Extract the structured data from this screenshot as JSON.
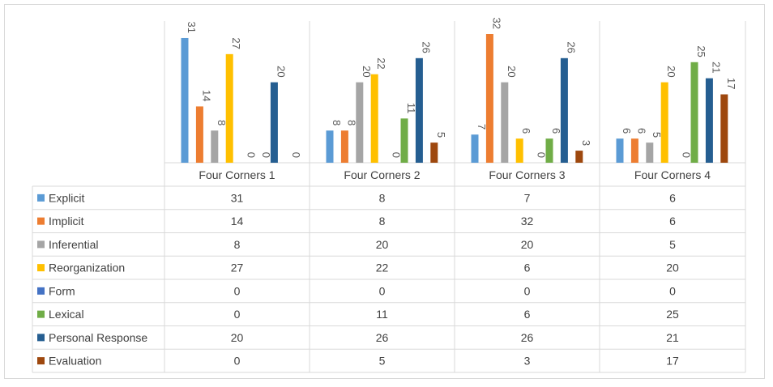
{
  "chart_data": {
    "type": "bar",
    "categories": [
      "Four Corners 1",
      "Four Corners 2",
      "Four Corners 3",
      "Four Corners 4"
    ],
    "series": [
      {
        "name": "Explicit",
        "color": "#5b9bd5",
        "values": [
          31,
          8,
          7,
          6
        ]
      },
      {
        "name": "Implicit",
        "color": "#ed7d31",
        "values": [
          14,
          8,
          32,
          6
        ]
      },
      {
        "name": "Inferential",
        "color": "#a5a5a5",
        "values": [
          8,
          20,
          20,
          5
        ]
      },
      {
        "name": "Reorganization",
        "color": "#ffc000",
        "values": [
          27,
          22,
          6,
          20
        ]
      },
      {
        "name": "Form",
        "color": "#4472c4",
        "values": [
          0,
          0,
          0,
          0
        ]
      },
      {
        "name": "Lexical",
        "color": "#70ad47",
        "values": [
          0,
          11,
          6,
          25
        ]
      },
      {
        "name": "Personal Response",
        "color": "#255e91",
        "values": [
          20,
          26,
          26,
          21
        ]
      },
      {
        "name": "Evaluation",
        "color": "#9e480e",
        "values": [
          0,
          5,
          3,
          17
        ]
      }
    ],
    "ylim": [
      0,
      32
    ],
    "legend": "data-table",
    "data_labels": true,
    "data_label_rotation": 90,
    "grid": false
  }
}
